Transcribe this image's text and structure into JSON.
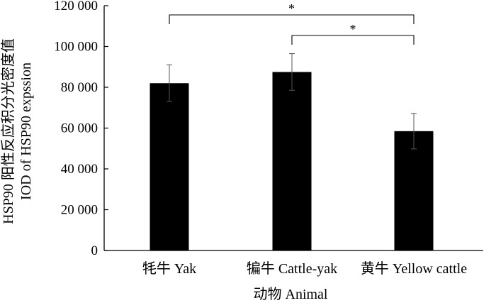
{
  "chart_data": {
    "type": "bar",
    "categories": [
      "牦牛 Yak",
      "犏牛 Cattle-yak",
      "黄牛 Yellow cattle"
    ],
    "values": [
      82000,
      87500,
      58500
    ],
    "errors": [
      9000,
      9000,
      8700
    ],
    "ylim": [
      0,
      120000
    ],
    "yticks": [
      0,
      20000,
      40000,
      60000,
      80000,
      100000,
      120000
    ],
    "ytick_labels": [
      "0",
      "20 000",
      "40 000",
      "60 000",
      "80 000",
      "100 000",
      "120 000"
    ],
    "xlabel": "动物 Animal",
    "ylabel_line1": "HSP90 阳性反应积分光密度值",
    "ylabel_line2": "IOD of HSP90 expssion",
    "bar_color": "#000000",
    "grid": false,
    "significance": [
      {
        "from": 0,
        "to": 2,
        "label": "*"
      },
      {
        "from": 1,
        "to": 2,
        "label": "*"
      }
    ]
  }
}
